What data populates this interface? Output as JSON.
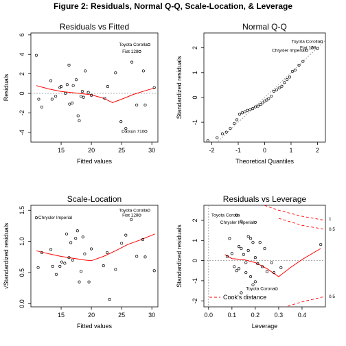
{
  "figure_title": "Figure 2: Residuals, Normal Q-Q, Scale-Location, & Leverage",
  "chart_data": [
    {
      "type": "scatter",
      "title": "Residuals vs Fitted",
      "xlabel": "Fitted values",
      "ylabel": "Residuals",
      "xlim": [
        10,
        31
      ],
      "ylim": [
        -5,
        6.2
      ],
      "xticks": [
        15,
        20,
        25,
        30
      ],
      "yticks": [
        -4,
        -2,
        0,
        2,
        4,
        6
      ],
      "reference_line": 0,
      "points": [
        [
          10.9,
          3.9
        ],
        [
          11.3,
          -0.6
        ],
        [
          11.8,
          -1.4
        ],
        [
          13.3,
          1.3
        ],
        [
          13.5,
          -0.6
        ],
        [
          14.1,
          -0.3
        ],
        [
          14.8,
          0.6
        ],
        [
          15.0,
          0.7
        ],
        [
          15.7,
          0.0
        ],
        [
          16.0,
          0.9
        ],
        [
          16.3,
          2.9
        ],
        [
          16.4,
          -1.1
        ],
        [
          16.8,
          -1.0
        ],
        [
          17.0,
          0.8
        ],
        [
          17.5,
          1.4
        ],
        [
          17.8,
          -2.3
        ],
        [
          18.0,
          -2.8
        ],
        [
          18.3,
          -0.3
        ],
        [
          18.5,
          0.2
        ],
        [
          18.7,
          -0.4
        ],
        [
          19.0,
          2.3
        ],
        [
          19.5,
          0.1
        ],
        [
          20.0,
          -0.2
        ],
        [
          22.2,
          -0.5
        ],
        [
          22.7,
          0.7
        ],
        [
          24.0,
          2.1
        ],
        [
          24.9,
          -2.9
        ],
        [
          25.7,
          -3.6
        ],
        [
          26.7,
          3.2
        ],
        [
          27.5,
          -1.2
        ],
        [
          28.0,
          4.3
        ],
        [
          28.6,
          2.3
        ],
        [
          28.9,
          -1.2
        ],
        [
          29.0,
          -3.9
        ],
        [
          29.5,
          5.0
        ],
        [
          30.4,
          0.6
        ]
      ],
      "smooth_line": [
        [
          10.9,
          0.8
        ],
        [
          13,
          0.45
        ],
        [
          15,
          0.2
        ],
        [
          18,
          0.0
        ],
        [
          20,
          -0.15
        ],
        [
          22,
          -0.5
        ],
        [
          23.5,
          -0.95
        ],
        [
          25,
          -0.6
        ],
        [
          27,
          -0.1
        ],
        [
          29,
          0.3
        ],
        [
          30.5,
          0.55
        ]
      ],
      "point_labels": [
        {
          "text": "Toyota Corolla",
          "x": 29.5,
          "y": 5.0
        },
        {
          "text": "Fiat 128",
          "x": 28.0,
          "y": 4.3
        },
        {
          "text": "Datsun 710",
          "x": 29.0,
          "y": -3.9
        }
      ]
    },
    {
      "type": "scatter",
      "title": "Normal Q-Q",
      "xlabel": "Theoretical Quantiles",
      "ylabel": "Standardized residuals",
      "xlim": [
        -2.3,
        2.3
      ],
      "ylim": [
        -1.8,
        2.6
      ],
      "xticks": [
        -2,
        -1,
        0,
        1,
        2
      ],
      "yticks": [
        -1,
        0,
        1,
        2
      ],
      "reference_line": [
        [
          -2.3,
          -2.3
        ],
        [
          2.3,
          2.3
        ]
      ],
      "points": [
        [
          -2.15,
          -1.75
        ],
        [
          -1.8,
          -1.62
        ],
        [
          -1.6,
          -1.47
        ],
        [
          -1.45,
          -1.4
        ],
        [
          -1.3,
          -1.25
        ],
        [
          -1.15,
          -1.05
        ],
        [
          -1.05,
          -0.9
        ],
        [
          -0.95,
          -0.68
        ],
        [
          -0.85,
          -0.62
        ],
        [
          -0.75,
          -0.58
        ],
        [
          -0.65,
          -0.52
        ],
        [
          -0.55,
          -0.5
        ],
        [
          -0.45,
          -0.45
        ],
        [
          -0.35,
          -0.38
        ],
        [
          -0.25,
          -0.35
        ],
        [
          -0.15,
          -0.28
        ],
        [
          -0.08,
          -0.22
        ],
        [
          0.0,
          -0.15
        ],
        [
          0.08,
          -0.1
        ],
        [
          0.15,
          -0.05
        ],
        [
          0.25,
          0.05
        ],
        [
          0.35,
          0.25
        ],
        [
          0.45,
          0.3
        ],
        [
          0.55,
          0.38
        ],
        [
          0.65,
          0.45
        ],
        [
          0.75,
          0.6
        ],
        [
          0.85,
          0.72
        ],
        [
          0.95,
          0.82
        ],
        [
          1.05,
          1.05
        ],
        [
          1.15,
          1.1
        ],
        [
          1.3,
          1.3
        ],
        [
          1.45,
          1.45
        ],
        [
          1.6,
          1.9
        ],
        [
          1.8,
          2.0
        ],
        [
          2.0,
          1.97
        ],
        [
          2.15,
          2.25
        ]
      ],
      "point_labels": [
        {
          "text": "Toyota Corolla",
          "x": 2.15,
          "y": 2.25
        },
        {
          "text": "Fiat 128",
          "x": 2.0,
          "y": 2.0
        },
        {
          "text": "Chrysler Imperial",
          "x": 1.6,
          "y": 1.9
        }
      ]
    },
    {
      "type": "scatter",
      "title": "Scale-Location",
      "xlabel": "Fitted values",
      "ylabel": "√Standardized residuals",
      "xlim": [
        10,
        31
      ],
      "ylim": [
        -0.05,
        1.58
      ],
      "xticks": [
        15,
        20,
        25,
        30
      ],
      "yticks": [
        0.0,
        0.5,
        1.0,
        1.5
      ],
      "points": [
        [
          10.9,
          1.38
        ],
        [
          11.2,
          0.58
        ],
        [
          11.8,
          0.82
        ],
        [
          13.3,
          0.87
        ],
        [
          13.6,
          0.6
        ],
        [
          14.2,
          0.47
        ],
        [
          14.8,
          0.6
        ],
        [
          15.1,
          0.67
        ],
        [
          15.6,
          0.65
        ],
        [
          15.9,
          1.12
        ],
        [
          16.3,
          0.74
        ],
        [
          16.6,
          0.98
        ],
        [
          16.9,
          0.7
        ],
        [
          17.4,
          1.05
        ],
        [
          17.7,
          1.17
        ],
        [
          18.0,
          0.35
        ],
        [
          18.3,
          0.52
        ],
        [
          18.6,
          1.07
        ],
        [
          18.9,
          0.8
        ],
        [
          19.6,
          0.35
        ],
        [
          20.0,
          0.88
        ],
        [
          22.0,
          0.61
        ],
        [
          22.6,
          0.82
        ],
        [
          23.0,
          0.07
        ],
        [
          24.0,
          0.55
        ],
        [
          25.0,
          0.97
        ],
        [
          25.7,
          1.1
        ],
        [
          26.6,
          1.35
        ],
        [
          27.5,
          0.76
        ],
        [
          28.0,
          1.42
        ],
        [
          28.5,
          1.03
        ],
        [
          28.9,
          0.75
        ],
        [
          29.5,
          1.5
        ],
        [
          30.4,
          0.53
        ]
      ],
      "smooth_line": [
        [
          10.9,
          0.85
        ],
        [
          13,
          0.8
        ],
        [
          15,
          0.76
        ],
        [
          17,
          0.73
        ],
        [
          19,
          0.7
        ],
        [
          20,
          0.69
        ],
        [
          22,
          0.76
        ],
        [
          24,
          0.85
        ],
        [
          26,
          0.95
        ],
        [
          28,
          1.02
        ],
        [
          30.5,
          1.12
        ]
      ],
      "point_labels": [
        {
          "text": "Chrysler Imperial",
          "x": 10.9,
          "y": 1.38
        },
        {
          "text": "Toyota Corolla",
          "x": 29.5,
          "y": 1.5
        },
        {
          "text": "Fiat 128",
          "x": 28.0,
          "y": 1.42
        }
      ]
    },
    {
      "type": "scatter",
      "title": "Residuals vs Leverage",
      "xlabel": "Leverage",
      "ylabel": "Standardized residuals",
      "xlim": [
        -0.02,
        0.5
      ],
      "ylim": [
        -2.3,
        2.75
      ],
      "xticks": [
        0.0,
        0.1,
        0.2,
        0.3,
        0.4
      ],
      "yticks": [
        -2,
        -1,
        0,
        1,
        2
      ],
      "reference_line": 0,
      "points": [
        [
          0.12,
          2.25
        ],
        [
          0.14,
          1.95
        ],
        [
          0.2,
          1.9
        ],
        [
          0.09,
          1.1
        ],
        [
          0.1,
          0.35
        ],
        [
          0.11,
          -0.3
        ],
        [
          0.12,
          -0.5
        ],
        [
          0.13,
          -0.4
        ],
        [
          0.14,
          0.6
        ],
        [
          0.15,
          0.3
        ],
        [
          0.16,
          -0.1
        ],
        [
          0.17,
          0.5
        ],
        [
          0.18,
          1.1
        ],
        [
          0.18,
          -0.8
        ],
        [
          0.19,
          -1.2
        ],
        [
          0.2,
          0.15
        ],
        [
          0.21,
          -0.15
        ],
        [
          0.22,
          0.9
        ],
        [
          0.23,
          -0.3
        ],
        [
          0.24,
          0.6
        ],
        [
          0.25,
          -0.55
        ],
        [
          0.27,
          -0.1
        ],
        [
          0.28,
          -0.6
        ],
        [
          0.29,
          -1.4
        ],
        [
          0.31,
          -0.35
        ],
        [
          0.14,
          -1.6
        ],
        [
          0.16,
          -0.6
        ],
        [
          0.2,
          -1.05
        ],
        [
          0.17,
          1.2
        ],
        [
          0.13,
          0.7
        ],
        [
          0.08,
          0.2
        ],
        [
          0.19,
          0.9
        ],
        [
          0.48,
          0.8
        ]
      ],
      "smooth_line": [
        [
          0.07,
          0.3
        ],
        [
          0.1,
          0.1
        ],
        [
          0.15,
          0.05
        ],
        [
          0.2,
          -0.1
        ],
        [
          0.25,
          -0.4
        ],
        [
          0.3,
          -0.8
        ],
        [
          0.35,
          -0.35
        ],
        [
          0.4,
          0.05
        ],
        [
          0.48,
          0.6
        ]
      ],
      "cooks_upper_1": [
        [
          0.2,
          2.9
        ],
        [
          0.3,
          2.5
        ],
        [
          0.4,
          2.2
        ],
        [
          0.5,
          2.0
        ]
      ],
      "cooks_upper_05": [
        [
          0.3,
          2.1
        ],
        [
          0.4,
          1.75
        ],
        [
          0.5,
          1.55
        ]
      ],
      "cooks_lower_05": [
        [
          0.3,
          -2.4
        ],
        [
          0.4,
          -2.05
        ],
        [
          0.5,
          -1.78
        ]
      ],
      "point_labels": [
        {
          "text": "Toyota Corolla",
          "x": 0.14,
          "y": 2.25
        },
        {
          "text": "Chrysler Imperial",
          "x": 0.2,
          "y": 1.9
        },
        {
          "text": "Toyota Corona",
          "x": 0.29,
          "y": -1.4
        }
      ],
      "contour_labels": [
        "1",
        "0.5",
        "0.5"
      ],
      "legend": "Cook's distance"
    }
  ],
  "colors": {
    "points": "#000000",
    "smooth": "#ff0000",
    "reference": "#909090",
    "cooks": "#ff0000"
  }
}
